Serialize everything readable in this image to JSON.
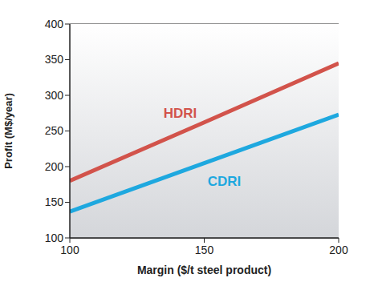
{
  "chart_data": {
    "type": "line",
    "x_label": "Margin ($/t steel product)",
    "y_label": "Profit (M$/year)",
    "x": [
      100,
      150,
      200
    ],
    "series": [
      {
        "name": "HDRI",
        "color": "#d2534b",
        "values": [
          180,
          262,
          345
        ]
      },
      {
        "name": "CDRI",
        "color": "#1ea8df",
        "values": [
          137,
          205,
          273
        ]
      }
    ],
    "xlim": [
      100,
      200
    ],
    "xticks": [
      100,
      150,
      200
    ],
    "ylim": [
      100,
      400
    ],
    "yticks": [
      100,
      150,
      200,
      250,
      300,
      350,
      400
    ],
    "grid": true
  }
}
